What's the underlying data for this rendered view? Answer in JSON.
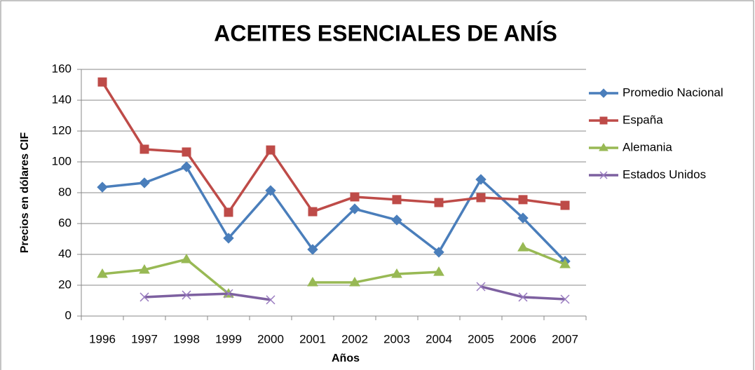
{
  "chart_data": {
    "type": "line",
    "title": "ACEITES ESENCIALES DE ANÍS",
    "x_label": "Años",
    "y_label": "Precios en dólares CIF",
    "categories": [
      "1996",
      "1997",
      "1998",
      "1999",
      "2000",
      "2001",
      "2002",
      "2003",
      "2004",
      "2005",
      "2006",
      "2007"
    ],
    "series": [
      {
        "name": "Promedio Nacional",
        "color": "#4a7ebb",
        "marker": "diamond",
        "values": [
          83.6,
          86.4,
          96.8,
          50.5,
          81.4,
          43.2,
          69.5,
          62.3,
          41.4,
          88.6,
          63.6,
          35.5
        ]
      },
      {
        "name": "España",
        "color": "#be4b48",
        "marker": "square",
        "values": [
          151.8,
          108.2,
          106.4,
          67.3,
          107.7,
          67.7,
          77.3,
          75.5,
          73.6,
          76.8,
          75.5,
          71.8
        ]
      },
      {
        "name": "Alemania",
        "color": "#98b954",
        "marker": "triangle",
        "values": [
          27.3,
          30,
          36.8,
          14.5,
          null,
          21.8,
          21.8,
          27.3,
          28.6,
          null,
          44.5,
          33.6
        ]
      },
      {
        "name": "Estados Unidos",
        "color": "#7d60a0",
        "marker": "x",
        "values": [
          null,
          12.3,
          13.6,
          14.5,
          10.5,
          null,
          null,
          null,
          null,
          19.1,
          12.3,
          10.9
        ]
      }
    ],
    "ylim": [
      0,
      160
    ],
    "yticks": [
      0,
      20,
      40,
      60,
      80,
      100,
      120,
      140,
      160
    ],
    "grid": true,
    "legend": "right"
  }
}
